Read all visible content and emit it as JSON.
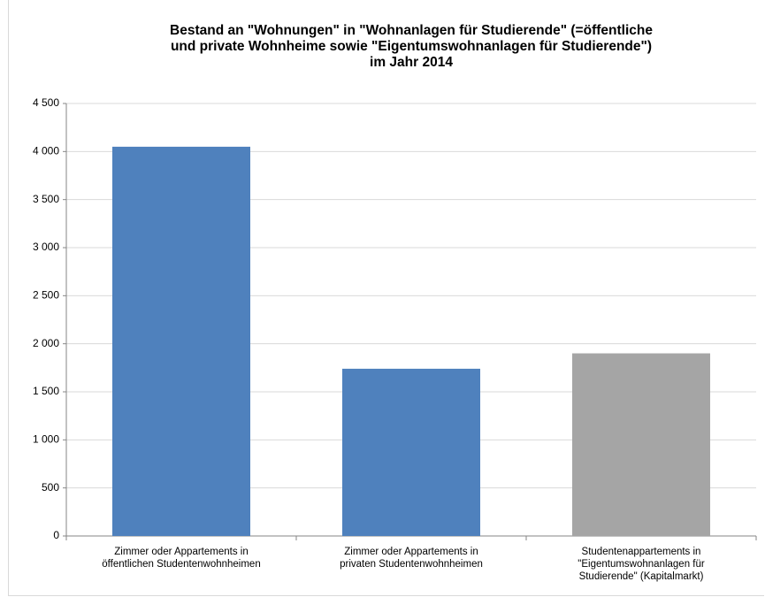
{
  "chart_data": {
    "type": "bar",
    "title": "Bestand an \"Wohnungen\" in \"Wohnanlagen für Studierende\" (=öffentliche\nund private Wohnheime sowie \"Eigentumswohnanlagen für Studierende\")\nim Jahr 2014",
    "categories": [
      "Zimmer oder Appartements in\nöffentlichen Studentenwohnheimen",
      "Zimmer oder Appartements in\nprivaten Studentenwohnheimen",
      "Studentenappartements in\n\"Eigentumswohnanlagen für\nStudierende\" (Kapitalmarkt)"
    ],
    "values": [
      4050,
      1740,
      1900
    ],
    "colors": [
      "#4f81bd",
      "#4f81bd",
      "#a5a5a5"
    ],
    "ylim": [
      0,
      4500
    ],
    "yticks": [
      0,
      500,
      {
        "value": 1000,
        "label": "1 000"
      },
      {
        "value": 1500,
        "label": "1 500"
      },
      {
        "value": 2000,
        "label": "2 000"
      },
      {
        "value": 2500,
        "label": "2 500"
      },
      {
        "value": 3000,
        "label": "3 000"
      },
      {
        "value": 3500,
        "label": "3 500"
      },
      {
        "value": 4000,
        "label": "4 000"
      },
      {
        "value": 4500,
        "label": "4 500"
      }
    ],
    "grid": true
  }
}
